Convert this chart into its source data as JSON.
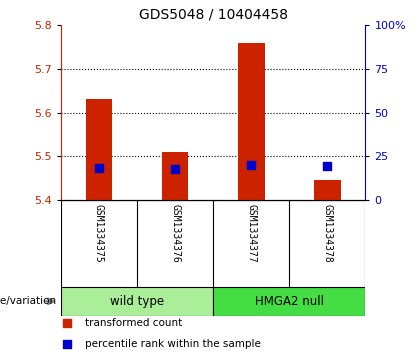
{
  "title": "GDS5048 / 10404458",
  "samples": [
    "GSM1334375",
    "GSM1334376",
    "GSM1334377",
    "GSM1334378"
  ],
  "red_values": [
    5.632,
    5.51,
    5.76,
    5.444
  ],
  "blue_values": [
    5.472,
    5.47,
    5.48,
    5.478
  ],
  "baseline": 5.4,
  "ylim": [
    5.4,
    5.8
  ],
  "yticks_left": [
    5.4,
    5.5,
    5.6,
    5.7,
    5.8
  ],
  "yticks_right": [
    0,
    25,
    50,
    75,
    100
  ],
  "yticks_right_labels": [
    "0",
    "25",
    "50",
    "75",
    "100%"
  ],
  "grid_vals": [
    5.5,
    5.6,
    5.7
  ],
  "groups": [
    {
      "label": "wild type",
      "indices": [
        0,
        1
      ],
      "color": "#aaee99"
    },
    {
      "label": "HMGA2 null",
      "indices": [
        2,
        3
      ],
      "color": "#44dd44"
    }
  ],
  "genotype_label": "genotype/variation",
  "legend": [
    {
      "color": "#cc2200",
      "label": "transformed count"
    },
    {
      "color": "#0000cc",
      "label": "percentile rank within the sample"
    }
  ],
  "bar_color": "#cc2200",
  "dot_color": "#0000cc",
  "left_axis_color": "#cc2200",
  "right_axis_color": "#0000cc",
  "bar_width": 0.35,
  "dot_size": 28,
  "background_color": "#ffffff",
  "plot_bg": "#ffffff",
  "gray_bg": "#cccccc"
}
